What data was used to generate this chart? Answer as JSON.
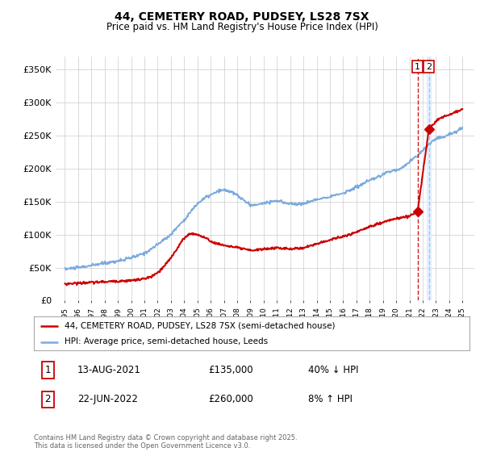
{
  "title": "44, CEMETERY ROAD, PUDSEY, LS28 7SX",
  "subtitle": "Price paid vs. HM Land Registry's House Price Index (HPI)",
  "hpi_label": "HPI: Average price, semi-detached house, Leeds",
  "price_label": "44, CEMETERY ROAD, PUDSEY, LS28 7SX (semi-detached house)",
  "hpi_color": "#7aaadd",
  "price_color": "#cc0000",
  "background_color": "#ffffff",
  "grid_color": "#cccccc",
  "ylim": [
    0,
    370000
  ],
  "yticks": [
    0,
    50000,
    100000,
    150000,
    200000,
    250000,
    300000,
    350000
  ],
  "ytick_labels": [
    "£0",
    "£50K",
    "£100K",
    "£150K",
    "£200K",
    "£250K",
    "£300K",
    "£350K"
  ],
  "footer": "Contains HM Land Registry data © Crown copyright and database right 2025.\nThis data is licensed under the Open Government Licence v3.0.",
  "transaction1_date": "13-AUG-2021",
  "transaction1_price": 135000,
  "transaction1_hpi_text": "40% ↓ HPI",
  "transaction2_date": "22-JUN-2022",
  "transaction2_price": 260000,
  "transaction2_hpi_text": "8% ↑ HPI",
  "transaction1_x": 2021.617,
  "transaction2_x": 2022.472,
  "xlim": [
    1994.3,
    2025.9
  ],
  "hpi_x": [
    1995.0,
    1995.5,
    1996.0,
    1996.5,
    1997.0,
    1997.5,
    1998.0,
    1998.5,
    1999.0,
    1999.5,
    2000.0,
    2000.5,
    2001.0,
    2001.5,
    2002.0,
    2002.5,
    2003.0,
    2003.5,
    2004.0,
    2004.5,
    2005.0,
    2005.5,
    2006.0,
    2006.5,
    2007.0,
    2007.5,
    2008.0,
    2008.5,
    2009.0,
    2009.5,
    2010.0,
    2010.5,
    2011.0,
    2011.5,
    2012.0,
    2012.5,
    2013.0,
    2013.5,
    2014.0,
    2014.5,
    2015.0,
    2015.5,
    2016.0,
    2016.5,
    2017.0,
    2017.5,
    2018.0,
    2018.5,
    2019.0,
    2019.5,
    2020.0,
    2020.5,
    2021.0,
    2021.5,
    2022.0,
    2022.5,
    2023.0,
    2023.5,
    2024.0,
    2024.5,
    2025.0
  ],
  "hpi_y": [
    48000,
    49000,
    50000,
    51500,
    53000,
    55000,
    57000,
    58500,
    60000,
    62000,
    65000,
    68000,
    72000,
    78000,
    85000,
    93000,
    100000,
    112000,
    122000,
    135000,
    147000,
    155000,
    160000,
    165000,
    168000,
    165000,
    160000,
    152000,
    145000,
    145000,
    148000,
    150000,
    151000,
    149000,
    147000,
    146000,
    147000,
    150000,
    153000,
    156000,
    158000,
    160000,
    163000,
    167000,
    172000,
    177000,
    182000,
    186000,
    191000,
    196000,
    198000,
    202000,
    210000,
    218000,
    228000,
    238000,
    245000,
    248000,
    252000,
    256000,
    262000
  ],
  "red_x": [
    1995.0,
    1995.5,
    1996.0,
    1996.5,
    1997.0,
    1997.5,
    1998.0,
    1998.5,
    1999.0,
    1999.5,
    2000.0,
    2000.5,
    2001.0,
    2001.5,
    2002.0,
    2002.5,
    2003.0,
    2003.5,
    2004.0,
    2004.5,
    2005.0,
    2005.5,
    2006.0,
    2006.5,
    2007.0,
    2007.5,
    2008.0,
    2008.5,
    2009.0,
    2009.5,
    2010.0,
    2010.5,
    2011.0,
    2011.5,
    2012.0,
    2012.5,
    2013.0,
    2013.5,
    2014.0,
    2014.5,
    2015.0,
    2015.5,
    2016.0,
    2016.5,
    2017.0,
    2017.5,
    2018.0,
    2018.5,
    2019.0,
    2019.5,
    2020.0,
    2020.5,
    2021.0,
    2021.617,
    2022.472,
    2023.0,
    2023.5,
    2024.0,
    2024.5,
    2025.0
  ],
  "red_y": [
    25000,
    26000,
    26500,
    27000,
    27500,
    28000,
    28500,
    29000,
    29500,
    30000,
    30500,
    31500,
    33000,
    36000,
    42000,
    52000,
    65000,
    80000,
    95000,
    102000,
    100000,
    96000,
    90000,
    86000,
    84000,
    82000,
    80000,
    78000,
    76000,
    77000,
    78000,
    79000,
    80000,
    79000,
    78000,
    79000,
    80000,
    83000,
    86000,
    89000,
    92000,
    95000,
    97000,
    100000,
    104000,
    108000,
    112000,
    116000,
    118000,
    122000,
    124000,
    126000,
    128000,
    135000,
    260000,
    272000,
    278000,
    282000,
    286000,
    290000
  ]
}
